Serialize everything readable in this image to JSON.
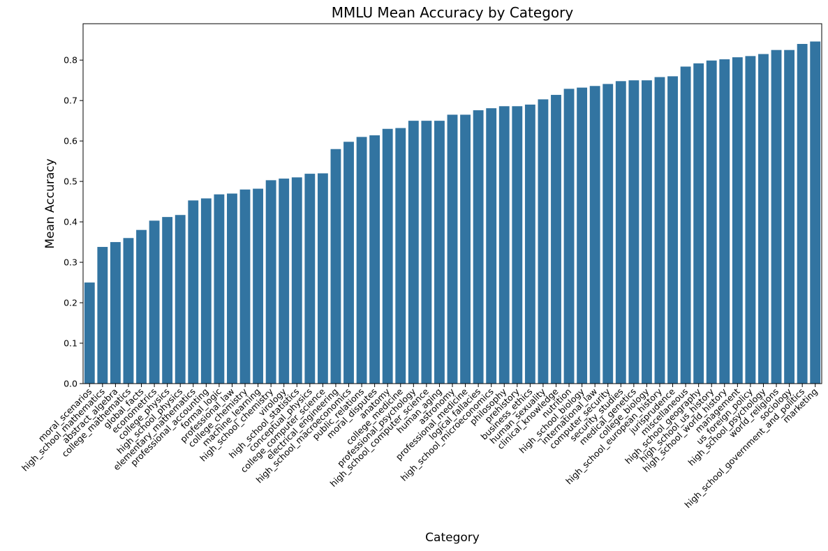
{
  "chart_data": {
    "type": "bar",
    "title": "MMLU Mean Accuracy by Category",
    "xlabel": "Category",
    "ylabel": "Mean Accuracy",
    "ylim": [
      0,
      0.89
    ],
    "yticks": [
      "0.0",
      "0.1",
      "0.2",
      "0.3",
      "0.4",
      "0.5",
      "0.6",
      "0.7",
      "0.8"
    ],
    "grid": false,
    "legend": "none",
    "bar_color": "#3274a1",
    "categories": [
      "moral_scenarios",
      "high_school_mathematics",
      "abstract_algebra",
      "college_mathematics",
      "global_facts",
      "econometrics",
      "college_physics",
      "high_school_physics",
      "elementary_mathematics",
      "professional_accounting",
      "formal_logic",
      "professional_law",
      "college_chemistry",
      "machine_learning",
      "high_school_chemistry",
      "virology",
      "high_school_statistics",
      "conceptual_physics",
      "college_computer_science",
      "electrical_engineering",
      "high_school_macroeconomics",
      "public_relations",
      "moral_disputes",
      "anatomy",
      "college_medicine",
      "professional_psychology",
      "high_school_computer_science",
      "human_aging",
      "astronomy",
      "professional_medicine",
      "logical_fallacies",
      "high_school_microeconomics",
      "philosophy",
      "prehistory",
      "business_ethics",
      "human_sexuality",
      "clinical_knowledge",
      "nutrition",
      "high_school_biology",
      "international_law",
      "computer_security",
      "security_studies",
      "medical_genetics",
      "college_biology",
      "high_school_european_history",
      "jurisprudence",
      "miscellaneous",
      "high_school_geography",
      "high_school_us_history",
      "high_school_world_history",
      "management",
      "us_foreign_policy",
      "high_school_psychology",
      "world_religions",
      "sociology",
      "high_school_government_and_politics",
      "marketing"
    ],
    "values": [
      0.25,
      0.338,
      0.35,
      0.36,
      0.38,
      0.403,
      0.412,
      0.417,
      0.453,
      0.458,
      0.468,
      0.47,
      0.48,
      0.482,
      0.503,
      0.507,
      0.51,
      0.519,
      0.52,
      0.58,
      0.598,
      0.61,
      0.614,
      0.63,
      0.632,
      0.65,
      0.65,
      0.65,
      0.665,
      0.665,
      0.676,
      0.681,
      0.686,
      0.686,
      0.69,
      0.703,
      0.714,
      0.729,
      0.732,
      0.736,
      0.741,
      0.748,
      0.75,
      0.75,
      0.758,
      0.76,
      0.784,
      0.792,
      0.799,
      0.802,
      0.807,
      0.81,
      0.815,
      0.825,
      0.825,
      0.84,
      0.846
    ]
  }
}
